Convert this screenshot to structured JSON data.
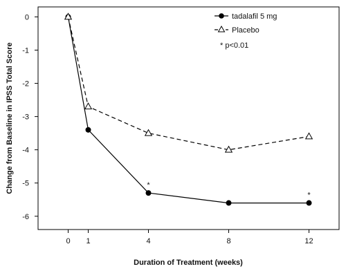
{
  "chart_data": {
    "type": "line",
    "xlabel": "Duration of Treatment (weeks)",
    "ylabel": "Change from Baseline in IPSS Total Score",
    "x": [
      0,
      1,
      4,
      8,
      12
    ],
    "x_ticks": [
      "0",
      "1",
      "4",
      "8",
      "12"
    ],
    "xlim": [
      -1.5,
      13.5
    ],
    "y_ticks": [
      "0",
      "-1",
      "-2",
      "-3",
      "-4",
      "-5",
      "-6"
    ],
    "ylim": [
      -6.4,
      0.3
    ],
    "grid": false,
    "legend_position": "top-right",
    "series": [
      {
        "name": "tadalafil 5 mg",
        "values": [
          0,
          -3.4,
          -5.3,
          -5.6,
          -5.6
        ],
        "marker": "filled-circle",
        "line_style": "solid",
        "color": "#000000",
        "significant": [
          false,
          false,
          true,
          false,
          true
        ]
      },
      {
        "name": "Placebo",
        "values": [
          0,
          -2.7,
          -3.5,
          -4.0,
          -3.6
        ],
        "marker": "open-triangle",
        "line_style": "dashed",
        "color": "#000000"
      }
    ],
    "significance_symbol": "*",
    "annotation_note": "* p<0.01"
  }
}
